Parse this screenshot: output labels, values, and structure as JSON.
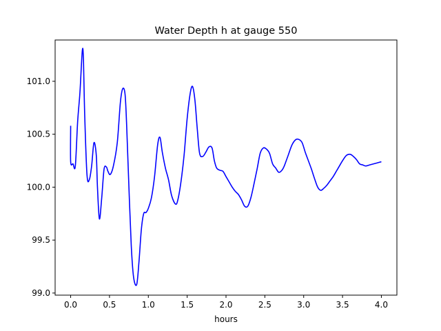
{
  "chart_data": {
    "type": "line",
    "title": "Water Depth h at gauge 550",
    "xlabel": "hours",
    "ylabel": "",
    "xlim": [
      -0.2,
      4.2
    ],
    "ylim": [
      98.98,
      101.39
    ],
    "xticks": [
      0.0,
      0.5,
      1.0,
      1.5,
      2.0,
      2.5,
      3.0,
      3.5,
      4.0
    ],
    "xtick_labels": [
      "0.0",
      "0.5",
      "1.0",
      "1.5",
      "2.0",
      "2.5",
      "3.0",
      "3.5",
      "4.0"
    ],
    "yticks": [
      99.0,
      99.5,
      100.0,
      100.5,
      101.0
    ],
    "ytick_labels": [
      "99.0",
      "99.5",
      "100.0",
      "100.5",
      "101.0"
    ],
    "grid": false,
    "series": [
      {
        "name": "",
        "color": "#0000ff",
        "x": [
          0.0,
          0.0,
          0.03,
          0.06,
          0.09,
          0.12,
          0.15,
          0.165,
          0.18,
          0.21,
          0.24,
          0.27,
          0.3,
          0.33,
          0.345,
          0.37,
          0.4,
          0.43,
          0.46,
          0.48,
          0.51,
          0.55,
          0.6,
          0.64,
          0.67,
          0.7,
          0.72,
          0.75,
          0.78,
          0.81,
          0.85,
          0.88,
          0.91,
          0.94,
          0.97,
          1.0,
          1.04,
          1.08,
          1.12,
          1.15,
          1.18,
          1.22,
          1.26,
          1.3,
          1.35,
          1.38,
          1.42,
          1.46,
          1.5,
          1.54,
          1.57,
          1.6,
          1.63,
          1.66,
          1.7,
          1.74,
          1.78,
          1.82,
          1.85,
          1.88,
          1.92,
          1.96,
          2.0,
          2.04,
          2.08,
          2.12,
          2.16,
          2.2,
          2.24,
          2.28,
          2.32,
          2.36,
          2.4,
          2.44,
          2.48,
          2.52,
          2.56,
          2.6,
          2.64,
          2.68,
          2.72,
          2.75,
          2.8,
          2.85,
          2.9,
          2.94,
          2.98,
          3.02,
          3.06,
          3.1,
          3.14,
          3.18,
          3.22,
          3.26,
          3.3,
          3.34,
          3.38,
          3.42,
          3.46,
          3.5,
          3.55,
          3.6,
          3.64,
          3.68,
          3.72,
          3.76,
          3.8,
          3.85,
          3.9,
          3.95,
          4.0
        ],
        "values": [
          100.58,
          100.24,
          100.22,
          100.2,
          100.62,
          100.9,
          101.29,
          101.2,
          100.7,
          100.12,
          100.07,
          100.2,
          100.42,
          100.3,
          100.0,
          99.7,
          99.9,
          100.17,
          100.19,
          100.15,
          100.12,
          100.2,
          100.42,
          100.8,
          100.93,
          100.88,
          100.6,
          100.0,
          99.45,
          99.15,
          99.08,
          99.3,
          99.6,
          99.75,
          99.76,
          99.8,
          99.9,
          100.1,
          100.4,
          100.47,
          100.33,
          100.18,
          100.07,
          99.92,
          99.84,
          99.88,
          100.05,
          100.3,
          100.65,
          100.89,
          100.95,
          100.82,
          100.55,
          100.32,
          100.29,
          100.33,
          100.38,
          100.37,
          100.25,
          100.18,
          100.16,
          100.15,
          100.1,
          100.05,
          100.0,
          99.96,
          99.93,
          99.88,
          99.82,
          99.82,
          99.9,
          100.03,
          100.17,
          100.32,
          100.37,
          100.36,
          100.32,
          100.22,
          100.18,
          100.14,
          100.16,
          100.2,
          100.3,
          100.4,
          100.45,
          100.45,
          100.42,
          100.33,
          100.25,
          100.17,
          100.08,
          100.0,
          99.97,
          99.99,
          100.02,
          100.06,
          100.1,
          100.15,
          100.2,
          100.25,
          100.3,
          100.31,
          100.29,
          100.26,
          100.22,
          100.21,
          100.2,
          100.21,
          100.22,
          100.23,
          100.24
        ]
      }
    ]
  }
}
